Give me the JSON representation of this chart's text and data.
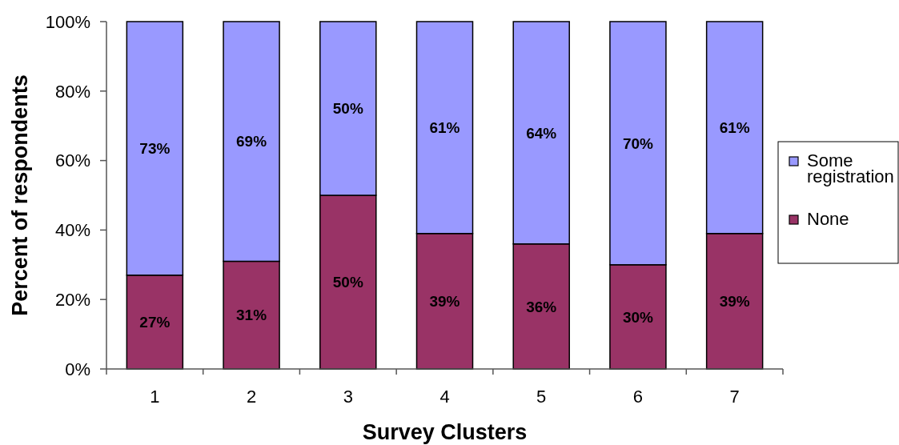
{
  "chart_data": {
    "type": "bar",
    "stacked": true,
    "xlabel": "Survey Clusters",
    "ylabel": "Percent of respondents",
    "categories": [
      "1",
      "2",
      "3",
      "4",
      "5",
      "6",
      "7"
    ],
    "series": [
      {
        "name": "None",
        "color": "#993366",
        "values": [
          27,
          31,
          50,
          39,
          36,
          30,
          39
        ],
        "value_labels": [
          "27%",
          "31%",
          "50%",
          "39%",
          "36%",
          "30%",
          "39%"
        ]
      },
      {
        "name": "Some registration",
        "color": "#9999ff",
        "values": [
          73,
          69,
          50,
          61,
          64,
          70,
          61
        ],
        "value_labels": [
          "73%",
          "69%",
          "50%",
          "61%",
          "64%",
          "70%",
          "61%"
        ]
      }
    ],
    "ylim": [
      0,
      100
    ],
    "yticks": [
      {
        "value": 0,
        "label": "0%"
      },
      {
        "value": 20,
        "label": "20%"
      },
      {
        "value": 40,
        "label": "40%"
      },
      {
        "value": 60,
        "label": "60%"
      },
      {
        "value": 80,
        "label": "80%"
      },
      {
        "value": 100,
        "label": "100%"
      }
    ],
    "legend": "right"
  }
}
